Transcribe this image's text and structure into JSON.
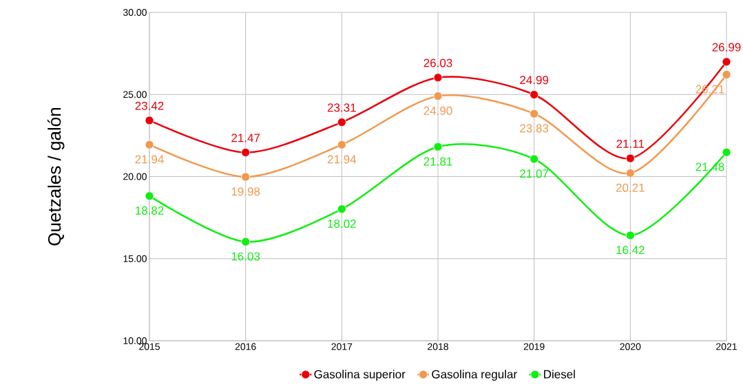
{
  "chart_data": {
    "type": "line",
    "ylabel": "Quetzales / galón",
    "x": [
      2015,
      2016,
      2017,
      2018,
      2019,
      2020,
      2021
    ],
    "xlim": [
      2015,
      2021
    ],
    "xticks": [
      2015,
      2016,
      2017,
      2018,
      2019,
      2020,
      2021
    ],
    "ylim": [
      10,
      30
    ],
    "yticks": [
      {
        "value": 10,
        "label": "10.00"
      },
      {
        "value": 15,
        "label": "15.00"
      },
      {
        "value": 20,
        "label": "20.00"
      },
      {
        "value": 25,
        "label": "25.00"
      },
      {
        "value": 30,
        "label": "30.00"
      }
    ],
    "grid": true,
    "legend": "bottom",
    "marker": "circle",
    "line_style": "solid",
    "series": [
      {
        "name": "Gasolina superior",
        "color": "#e8000b",
        "values": [
          23.42,
          21.47,
          23.31,
          26.03,
          24.99,
          21.11,
          26.99
        ],
        "value_labels": [
          "23.42",
          "21.47",
          "23.31",
          "26.03",
          "24.99",
          "21.11",
          "26.99"
        ]
      },
      {
        "name": "Gasolina regular",
        "color": "#f0994f",
        "values": [
          21.94,
          19.98,
          21.94,
          24.9,
          23.83,
          20.21,
          26.21
        ],
        "value_labels": [
          "21.94",
          "19.98",
          "21.94",
          "24.90",
          "23.83",
          "20.21",
          "26.21"
        ]
      },
      {
        "name": "Diesel",
        "color": "#11ee11",
        "values": [
          18.82,
          16.03,
          18.02,
          21.81,
          21.07,
          16.42,
          21.48
        ],
        "value_labels": [
          "18.82",
          "16.03",
          "18.02",
          "21.81",
          "21.07",
          "16.42",
          "21.48"
        ]
      }
    ]
  }
}
